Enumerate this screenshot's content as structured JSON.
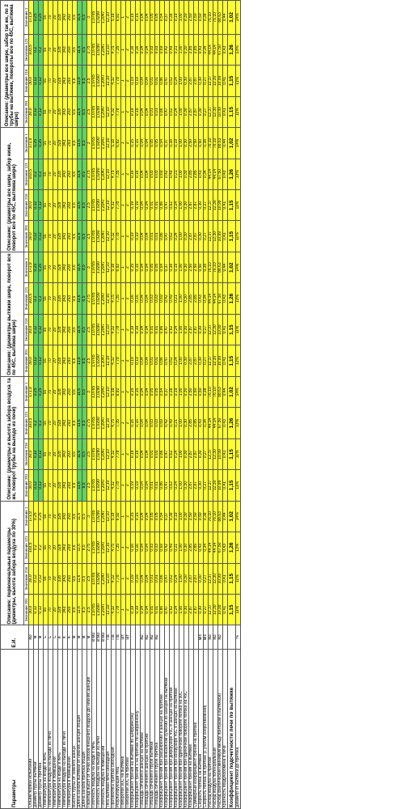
{
  "header": {
    "params": "Параметры",
    "unit": "Е.И.",
    "groups": [
      "Описание: первоначальные параметры (диаметры, высота забора воздуха по 30%)",
      "Описание: (диаметры и высота забора воздуха та же, поворот трубы на выходе из печи)",
      "Описание: (диаметры вытяжки шире, поворот все по 45С, вытяжка шире)",
      "Описание: (диаметры все шире, забор ниже, поворот все по 45С, вытяжка шире)",
      "Описание: (диаметры все шире, забор так же, по 2 трубы на вытяжке, повороты все по 45С, вытяжка шире)"
    ],
    "subheads": [
      "Значение 201",
      "Значение 216",
      "Значение 121",
      "Значение 1"
    ]
  },
  "colors": {
    "yellow": "#ffff2e",
    "green": "#5fd35f"
  },
  "rows": [
    {
      "label": "Объем первой испытаний",
      "unit": "м3",
      "vals": [
        "30,0",
        "30,0",
        "103,5",
        "171,9"
      ]
    },
    {
      "label": "Диаметр трубы вытяжки",
      "unit": "м",
      "vals": [
        "0,12",
        "0,12",
        "0,2",
        "0,25"
      ]
    },
    {
      "label": "Диаметр трубы притока",
      "unit": "м",
      "vals": [
        "0,12",
        "0,12",
        "0,2",
        "0,25"
      ]
    },
    {
      "label": "Температура на входе в печь",
      "unit": "С",
      "vals": [
        "55",
        "55",
        "55",
        "55"
      ]
    },
    {
      "label": "Температура воздуха на выходе из печи",
      "unit": "С",
      "vals": [
        "70",
        "70",
        "70",
        "70"
      ]
    },
    {
      "label": "Температура в помещении",
      "unit": "С",
      "vals": [
        "20",
        "20",
        "20",
        "20"
      ]
    },
    {
      "label": "Температура на входе в печь",
      "unit": "К",
      "vals": [
        "328",
        "328",
        "328",
        "328"
      ]
    },
    {
      "label": "Температура воздуха на выходе из печи",
      "unit": "К",
      "vals": [
        "343",
        "343",
        "343",
        "343"
      ]
    },
    {
      "label": "Температура в помещении",
      "unit": "К",
      "vals": [
        "293",
        "293",
        "293",
        "293"
      ]
    },
    {
      "label": "Высота трубы от нижнего шанца",
      "unit": "м",
      "vals": [
        "9,6",
        "9,6",
        "9,6",
        "9,6"
      ]
    },
    {
      "label": "Длина канала вытяжки от нижних шанцев общая",
      "unit": "м",
      "vals": [
        "11,6",
        "11,6",
        "11,6",
        "11,6"
      ]
    },
    {
      "label": "Длина канала притока общая",
      "unit": "м",
      "vals": [
        "8,5",
        "8,5",
        "8,5",
        "8,5"
      ]
    },
    {
      "label": "Перепад высот от точки забора внешнего воздуха до нижних шанцев",
      "unit": "м",
      "vals": [
        "2,5",
        "2,5",
        "2,75",
        "3"
      ]
    },
    {
      "label": "Плотность воздуха на входе в печь",
      "unit": "кг/м3",
      "vals": [
        "1,0765",
        "1,0765",
        "1,0765",
        "1,0765"
      ]
    },
    {
      "label": "Плотность воздуха на выходе из печи",
      "unit": "кг/м3",
      "vals": [
        "1,0290",
        "1,0290",
        "1,0290",
        "1,0290"
      ]
    },
    {
      "label": "Плотность воздуха в помещении",
      "unit": "кг/м3",
      "vals": [
        "1,2047",
        "1,2047",
        "1,2047",
        "1,2047"
      ]
    },
    {
      "label": "Тяга вытяжки печи свободная",
      "unit": "Па",
      "vals": [
        "12,10",
        "12,10",
        "12,10",
        "12,10"
      ]
    },
    {
      "label": "Противотяга притока свободная",
      "unit": "Па",
      "vals": [
        "4,32",
        "4,32",
        "4,75",
        "5,18"
      ]
    },
    {
      "label": "Результирующая тяга",
      "unit": "Па",
      "vals": [
        "7,78",
        "7,78",
        "7,35",
        "6,92"
      ]
    },
    {
      "label": "Поворотов 90С на вытяжке",
      "unit": "шт",
      "vals": [
        "1",
        "1",
        "1",
        "1"
      ]
    },
    {
      "label": "Поворотов 90С на притоке",
      "unit": "шт",
      "vals": [
        "2",
        "2",
        "2",
        "2"
      ]
    },
    {
      "label": "Коэффициент трения на вытяжке по Шифринсону",
      "unit": "",
      "vals": [
        "0,19",
        "0,19",
        "0,16",
        "0,15"
      ]
    },
    {
      "label": "Коэффициент трения λ на притоке по Шифринсону",
      "unit": "",
      "vals": [
        "0,19",
        "0,19",
        "0,16",
        "0,15"
      ]
    },
    {
      "label": "Площадь сечения в шанцах на вытяжке",
      "unit": "м2",
      "vals": [
        "0,04",
        "0,04",
        "0,04",
        "0,04"
      ]
    },
    {
      "label": "Площадь сечения в шанцах на притоке",
      "unit": "м2",
      "vals": [
        "0,04",
        "0,04",
        "0,04",
        "0,04"
      ]
    },
    {
      "label": "Площадь сечения в трубе вытяжки",
      "unit": "м2",
      "vals": [
        "0,01",
        "0,01",
        "0,03",
        "0,05"
      ]
    },
    {
      "label": "Площадь сечения в трубе притока",
      "unit": "м2",
      "vals": [
        "0,01",
        "0,01",
        "0,03",
        "0,05"
      ]
    },
    {
      "label": "Коэффициент трения при расширении в шанцах на притоке",
      "unit": "",
      "vals": [
        "0,86",
        "0,86",
        "0,69",
        "0,54"
      ]
    },
    {
      "label": "Коэффициент трения при внезапном сужении из шанцев на вытяжке",
      "unit": "",
      "vals": [
        "0,47",
        "0,47",
        "0,42",
        "0,37"
      ]
    },
    {
      "label": "Коэффициент трения при диффузоре 45С в шанцах на притоке",
      "unit": "",
      "vals": [
        "0,62",
        "0,62",
        "0,49",
        "0,38"
      ]
    },
    {
      "label": "Коэффициент трения при конфузоре 45С в шанцах на вытяжке",
      "unit": "",
      "vals": [
        "0,24",
        "0,24",
        "0,21",
        "0,19"
      ]
    },
    {
      "label": "Коэффициент трения при одиночном повороте потока на 90С",
      "unit": "",
      "vals": [
        "1,00",
        "1,00",
        "1,00",
        "1,00"
      ]
    },
    {
      "label": "Коэффициент трения при одиночном повороте потока на 45С",
      "unit": "",
      "vals": [
        "0,30",
        "0,30",
        "0,30",
        "0,30"
      ]
    },
    {
      "label": "Коэффициент трения на вытяжке",
      "unit": "",
      "vals": [
        "2,87",
        "2,87",
        "2,85",
        "2,50"
      ]
    },
    {
      "label": "Суммарный коэффициент трения на притоке",
      "unit": "",
      "vals": [
        "2,87",
        "2,87",
        "2,85",
        "2,50"
      ]
    },
    {
      "label": "Скорость потока на вытяжке",
      "unit": "м/с",
      "vals": [
        "0,30",
        "0,30",
        "0,43",
        "0,50"
      ]
    },
    {
      "label": "Скорость потока на притоке (с учетом сопротивлений)",
      "unit": "м/с",
      "vals": [
        "0,27",
        "0,27",
        "0,34",
        "0,38"
      ]
    },
    {
      "label": "Расход воздуха на притоке",
      "unit": "м3",
      "vals": [
        "12,37",
        "12,37",
        "44,14",
        "76,10"
      ]
    },
    {
      "label": "Расход воздуха потенциальный",
      "unit": "м3",
      "vals": [
        "12,30",
        "12,30",
        "44,14",
        "76,10"
      ]
    },
    {
      "label": "Расход фактический (минимум между притоком и вытяжкой)",
      "unit": "м3",
      "vals": [
        "10,99",
        "10,99",
        "67,50",
        "88,63"
      ]
    },
    {
      "label": "Кратность воздухообмена в печи",
      "unit": "",
      "vals": [
        "0,41",
        "0,41",
        "0,43",
        "0,44"
      ]
    },
    {
      "label": "Коэффициент подсчетности печи по вытяжке",
      "unit": "",
      "vals": [
        "1,15",
        "1,15",
        "1,26",
        "1,02"
      ]
    },
    {
      "label": "Диаметр от вытяжки до притока",
      "unit": "%",
      "vals": [
        "11%",
        "11%",
        "13%",
        "14%"
      ]
    }
  ],
  "kf_label": "Коэффициент подсчетности печи по вытяжке"
}
